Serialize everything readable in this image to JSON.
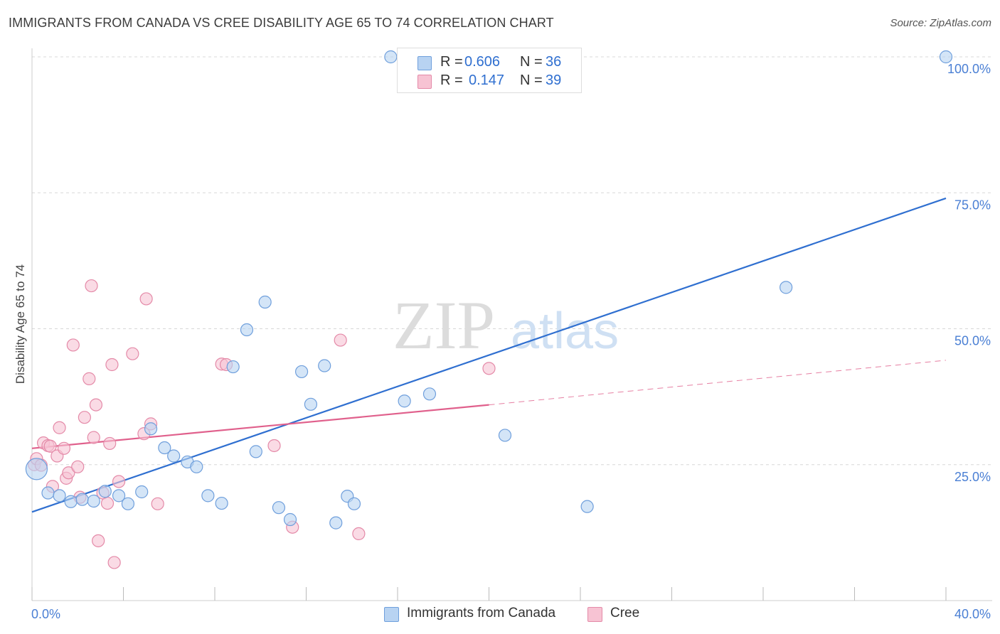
{
  "title": "IMMIGRANTS FROM CANADA VS CREE DISABILITY AGE 65 TO 74 CORRELATION CHART",
  "source": "Source: ZipAtlas.com",
  "watermark": {
    "zip": "ZIP",
    "atlas": "atlas"
  },
  "legend": {
    "series1": {
      "r_label": "R =",
      "r_value": "0.606",
      "n_label": "N =",
      "n_value": "36"
    },
    "series2": {
      "r_label": "R =",
      "r_value": "0.147",
      "n_label": "N =",
      "n_value": "39"
    }
  },
  "bottom_legend": {
    "series1": "Immigrants from Canada",
    "series2": "Cree"
  },
  "colors": {
    "blue_fill": "#b8d3f2",
    "blue_stroke": "#6f9fdc",
    "blue_line": "#2f6fd0",
    "pink_fill": "#f7c3d3",
    "pink_stroke": "#e48aa8",
    "pink_line": "#e0608c",
    "tick_text": "#4a7fd4",
    "grid": "#d8d8d8"
  },
  "chart_data": {
    "type": "scatter",
    "title": "IMMIGRANTS FROM CANADA VS CREE DISABILITY AGE 65 TO 74 CORRELATION CHART",
    "xlabel": "",
    "ylabel": "Disability Age 65 to 74",
    "xlim": [
      0,
      40
    ],
    "ylim": [
      0,
      102
    ],
    "x_tick_labels": [
      "0.0%",
      "40.0%"
    ],
    "y_ticks": [
      25,
      50,
      75,
      100
    ],
    "y_tick_labels": [
      "25.0%",
      "50.0%",
      "75.0%",
      "100.0%"
    ],
    "grid": true,
    "series": [
      {
        "name": "Immigrants from Canada",
        "color": "#6f9fdc",
        "points": [
          [
            0.2,
            24.2
          ],
          [
            0.7,
            19.8
          ],
          [
            1.2,
            19.3
          ],
          [
            1.7,
            18.2
          ],
          [
            2.2,
            18.6
          ],
          [
            2.7,
            18.3
          ],
          [
            3.2,
            20.1
          ],
          [
            3.8,
            19.3
          ],
          [
            4.2,
            17.8
          ],
          [
            4.8,
            20.0
          ],
          [
            5.2,
            31.6
          ],
          [
            5.8,
            28.1
          ],
          [
            6.2,
            26.6
          ],
          [
            6.8,
            25.5
          ],
          [
            7.2,
            24.6
          ],
          [
            7.7,
            19.3
          ],
          [
            8.3,
            17.9
          ],
          [
            8.8,
            43.0
          ],
          [
            9.4,
            49.8
          ],
          [
            9.8,
            27.4
          ],
          [
            10.2,
            54.9
          ],
          [
            10.8,
            17.1
          ],
          [
            11.3,
            14.9
          ],
          [
            11.8,
            42.1
          ],
          [
            12.2,
            36.1
          ],
          [
            12.8,
            43.2
          ],
          [
            13.3,
            14.3
          ],
          [
            13.8,
            19.2
          ],
          [
            14.1,
            17.8
          ],
          [
            15.7,
            100.0
          ],
          [
            16.3,
            36.7
          ],
          [
            17.4,
            38.0
          ],
          [
            20.7,
            30.4
          ],
          [
            24.3,
            17.3
          ],
          [
            33.0,
            57.6
          ],
          [
            40.0,
            100.0
          ]
        ],
        "trend": {
          "x": [
            0,
            40
          ],
          "y": [
            16.3,
            74.0
          ]
        }
      },
      {
        "name": "Cree",
        "color": "#e48aa8",
        "points": [
          [
            0.1,
            25.0
          ],
          [
            0.2,
            26.1
          ],
          [
            0.4,
            24.9
          ],
          [
            0.5,
            29.0
          ],
          [
            0.7,
            28.5
          ],
          [
            0.8,
            28.4
          ],
          [
            0.9,
            21.0
          ],
          [
            1.1,
            26.6
          ],
          [
            1.2,
            31.8
          ],
          [
            1.4,
            28.0
          ],
          [
            1.5,
            22.5
          ],
          [
            1.6,
            23.5
          ],
          [
            1.8,
            47.0
          ],
          [
            2.0,
            24.6
          ],
          [
            2.1,
            19.0
          ],
          [
            2.3,
            33.7
          ],
          [
            2.5,
            40.8
          ],
          [
            2.6,
            57.9
          ],
          [
            2.7,
            30.0
          ],
          [
            2.8,
            36.0
          ],
          [
            2.9,
            11.0
          ],
          [
            3.1,
            19.8
          ],
          [
            3.3,
            17.9
          ],
          [
            3.4,
            28.9
          ],
          [
            3.5,
            43.4
          ],
          [
            3.6,
            7.0
          ],
          [
            3.8,
            21.9
          ],
          [
            4.4,
            45.4
          ],
          [
            4.9,
            30.7
          ],
          [
            5.0,
            55.5
          ],
          [
            5.2,
            32.5
          ],
          [
            5.5,
            17.8
          ],
          [
            8.3,
            43.5
          ],
          [
            8.5,
            43.4
          ],
          [
            10.6,
            28.5
          ],
          [
            11.4,
            13.5
          ],
          [
            13.5,
            47.9
          ],
          [
            14.3,
            12.3
          ],
          [
            20.0,
            42.7
          ]
        ],
        "trend": {
          "x": [
            0,
            20
          ],
          "y": [
            28.0,
            36.0
          ]
        },
        "trend_dashed": {
          "x": [
            20,
            40
          ],
          "y": [
            36.0,
            44.2
          ]
        }
      }
    ]
  }
}
